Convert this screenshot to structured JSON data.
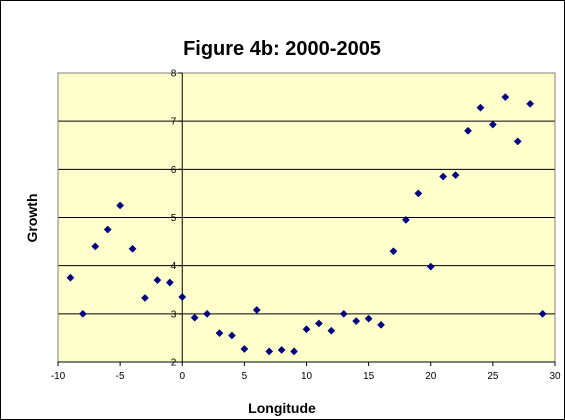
{
  "chart_data": {
    "type": "scatter",
    "title": "Figure 4b: 2000-2005",
    "xlabel": "Longitude",
    "ylabel": "Growth",
    "xlim": [
      -10,
      30
    ],
    "ylim": [
      2,
      8
    ],
    "x_ticks": [
      "-10",
      "-5",
      "0",
      "5",
      "10",
      "15",
      "20",
      "25",
      "30"
    ],
    "y_ticks": [
      "2",
      "3",
      "4",
      "5",
      "6",
      "7",
      "8"
    ],
    "grid": "horizontal major gridlines",
    "legend": "none",
    "colors": {
      "plot_area": "#ffffcc",
      "marker": "#000080",
      "gridline": "#000000",
      "background": "#ffffff"
    },
    "points": [
      {
        "x": -9,
        "y": 3.75
      },
      {
        "x": -8,
        "y": 3.0
      },
      {
        "x": -7,
        "y": 4.4
      },
      {
        "x": -6,
        "y": 4.75
      },
      {
        "x": -5,
        "y": 5.25
      },
      {
        "x": -4,
        "y": 4.35
      },
      {
        "x": -3,
        "y": 3.33
      },
      {
        "x": -2,
        "y": 3.7
      },
      {
        "x": -1,
        "y": 3.65
      },
      {
        "x": 0,
        "y": 3.35
      },
      {
        "x": 1,
        "y": 2.92
      },
      {
        "x": 2,
        "y": 3.0
      },
      {
        "x": 3,
        "y": 2.6
      },
      {
        "x": 4,
        "y": 2.55
      },
      {
        "x": 5,
        "y": 2.27
      },
      {
        "x": 6,
        "y": 3.08
      },
      {
        "x": 7,
        "y": 2.22
      },
      {
        "x": 8,
        "y": 2.25
      },
      {
        "x": 9,
        "y": 2.22
      },
      {
        "x": 10,
        "y": 2.68
      },
      {
        "x": 11,
        "y": 2.8
      },
      {
        "x": 12,
        "y": 2.65
      },
      {
        "x": 13,
        "y": 3.0
      },
      {
        "x": 14,
        "y": 2.85
      },
      {
        "x": 15,
        "y": 2.9
      },
      {
        "x": 16,
        "y": 2.77
      },
      {
        "x": 17,
        "y": 4.3
      },
      {
        "x": 18,
        "y": 4.95
      },
      {
        "x": 19,
        "y": 5.5
      },
      {
        "x": 20,
        "y": 3.98
      },
      {
        "x": 21,
        "y": 5.85
      },
      {
        "x": 22,
        "y": 5.88
      },
      {
        "x": 23,
        "y": 6.8
      },
      {
        "x": 24,
        "y": 7.28
      },
      {
        "x": 25,
        "y": 6.93
      },
      {
        "x": 26,
        "y": 7.5
      },
      {
        "x": 27,
        "y": 6.58
      },
      {
        "x": 28,
        "y": 7.36
      },
      {
        "x": 29,
        "y": 3.0
      }
    ]
  }
}
